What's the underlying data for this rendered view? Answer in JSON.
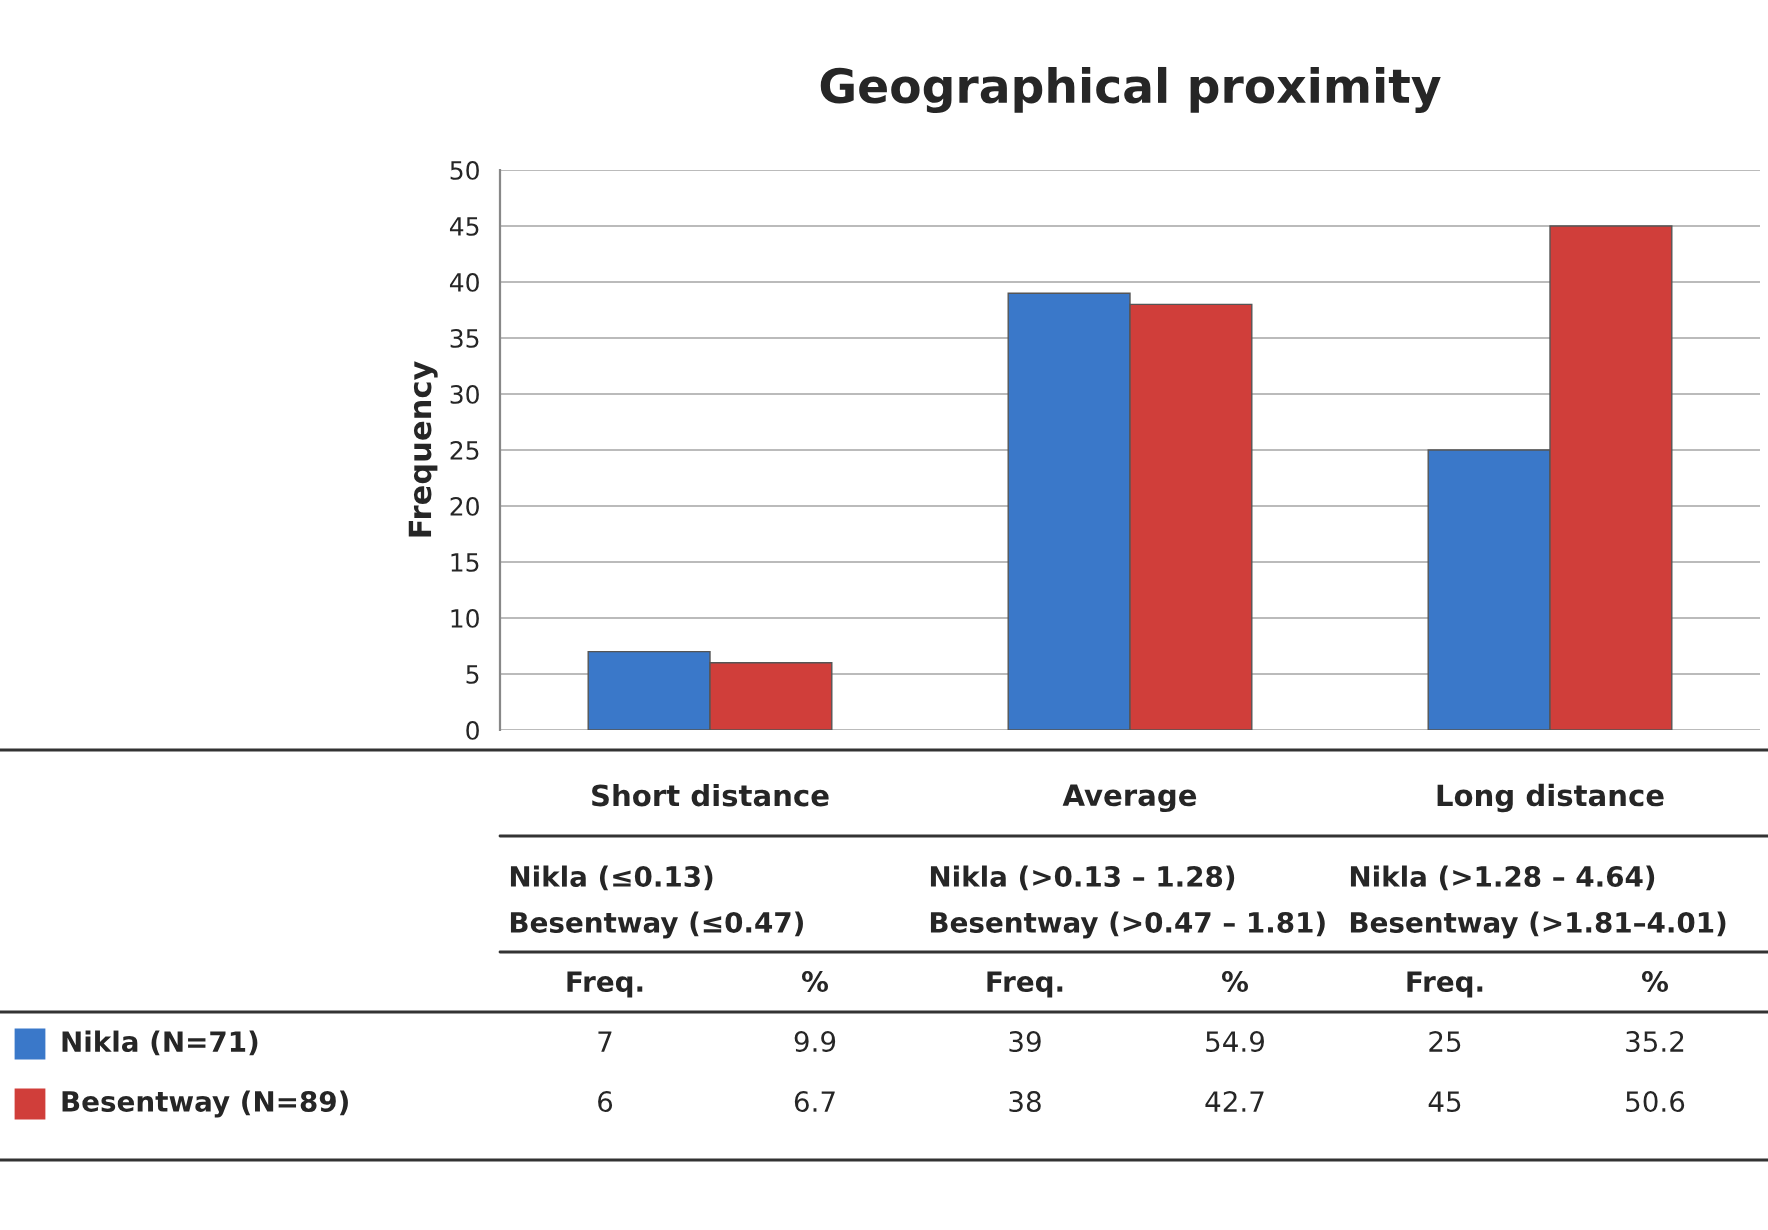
{
  "chart_data": {
    "type": "bar",
    "title": "Geographical proximity",
    "ylabel": "Frequency",
    "categories": [
      "Short distance",
      "Average",
      "Long distance"
    ],
    "series": [
      {
        "name": "Nikla (N=71)",
        "color": "#3a78c9",
        "values": [
          7,
          39,
          25
        ]
      },
      {
        "name": "Besentway (N=89)",
        "color": "#d03e3a",
        "values": [
          6,
          38,
          45
        ]
      }
    ],
    "ylim": [
      0,
      50
    ],
    "yticks": [
      0,
      5,
      10,
      15,
      20,
      25,
      30,
      35,
      40,
      45,
      50
    ],
    "grid": "y",
    "legend": "bottom",
    "data_labels": true,
    "annotations": [
      "Nikla (≤0.13)\nBesentway (≤0.47)",
      "Nikla (>0.13 – 1.28)\nBesentway (>0.47 – 1.81)",
      "Nikla (>1.28 – 4.64)\nBesentway (>1.81–4.01)",
      "Freq.",
      "%",
      "9.9",
      "54.9",
      "35.2",
      "6.7",
      "42.7",
      "50.6"
    ]
  }
}
